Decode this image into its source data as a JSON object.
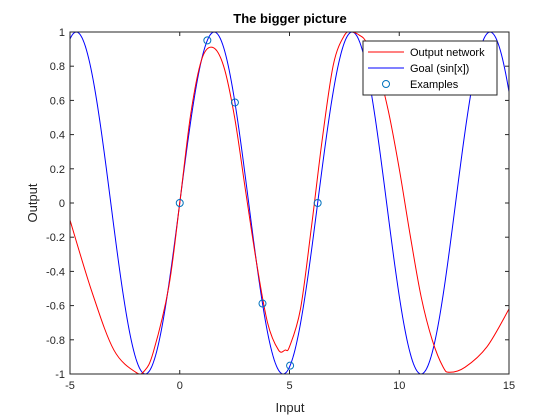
{
  "chart_data": {
    "type": "line",
    "title": "The bigger picture",
    "xlabel": "Input",
    "ylabel": "Output",
    "xlim": [
      -5,
      15
    ],
    "ylim": [
      -1,
      1
    ],
    "xticks": [
      -5,
      0,
      5,
      10,
      15
    ],
    "yticks": [
      -1,
      -0.8,
      -0.6,
      -0.4,
      -0.2,
      0,
      0.2,
      0.4,
      0.6,
      0.8,
      1
    ],
    "xtick_labels": [
      "-5",
      "0",
      "5",
      "10",
      "15"
    ],
    "ytick_labels": [
      "-1",
      "-0.8",
      "-0.6",
      "-0.4",
      "-0.2",
      "0",
      "0.2",
      "0.4",
      "0.6",
      "0.8",
      "1"
    ],
    "grid": false,
    "legend_position": "top-right",
    "series": [
      {
        "name": "Output network",
        "style": "line",
        "color": "#ff0000",
        "x": [
          -5,
          -4,
          -3,
          -2,
          -1.6,
          -1.2,
          -0.5,
          0,
          0.5,
          1,
          1.5,
          2,
          2.5,
          3,
          3.5,
          4,
          4.5,
          4.8,
          5,
          5.5,
          6,
          6.5,
          7,
          7.5,
          7.85,
          8.2,
          8.5,
          9,
          9.5,
          10,
          10.5,
          11,
          11.5,
          12,
          12.3,
          13,
          14,
          15
        ],
        "y": [
          -0.1,
          -0.52,
          -0.86,
          -0.99,
          -0.98,
          -0.87,
          -0.49,
          0.0,
          0.52,
          0.84,
          0.91,
          0.8,
          0.5,
          0.07,
          -0.35,
          -0.7,
          -0.86,
          -0.86,
          -0.84,
          -0.62,
          -0.14,
          0.38,
          0.81,
          0.98,
          1.0,
          0.98,
          0.94,
          0.79,
          0.54,
          0.2,
          -0.19,
          -0.55,
          -0.8,
          -0.96,
          -0.99,
          -0.96,
          -0.84,
          -0.62
        ]
      },
      {
        "name": "Goal (sin[x])",
        "style": "line",
        "color": "#0000ff",
        "function": "sin",
        "x_range": [
          -5,
          15
        ]
      },
      {
        "name": "Examples",
        "style": "markers",
        "marker": "circle",
        "color": "#0072bd",
        "x": [
          0,
          1.257,
          2.513,
          3.77,
          5.027,
          6.283
        ],
        "y": [
          0,
          0.951,
          0.588,
          -0.588,
          -0.951,
          0
        ]
      }
    ]
  }
}
